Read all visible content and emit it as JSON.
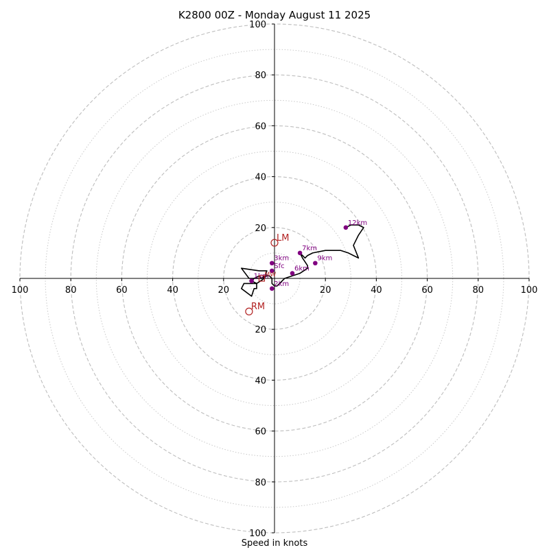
{
  "chart_data": {
    "type": "hodograph",
    "title": "K2800 00Z - Monday August 11 2025",
    "xlabel": "Speed in knots",
    "units": "knots",
    "range": [
      -100,
      100
    ],
    "rings_major": [
      20,
      40,
      60,
      80,
      100
    ],
    "rings_minor": [
      10,
      30,
      50,
      70,
      90
    ],
    "tick_labels": {
      "top": [
        "100",
        "80",
        "60",
        "40",
        "20"
      ],
      "bottom": [
        "20",
        "40",
        "60",
        "80",
        "100"
      ],
      "left": [
        "100",
        "80",
        "60",
        "40",
        "20"
      ],
      "right": [
        "20",
        "40",
        "60",
        "80",
        "100"
      ]
    },
    "grid": true,
    "trace": [
      [
        -3,
        1
      ],
      [
        -5,
        0
      ],
      [
        -10,
        0
      ],
      [
        -13,
        4
      ],
      [
        -6,
        3
      ],
      [
        -3,
        3
      ],
      [
        -4,
        0
      ],
      [
        -7,
        -2
      ],
      [
        -12,
        -2
      ],
      [
        -13,
        -4
      ],
      [
        -9,
        -7
      ],
      [
        -8,
        -4
      ],
      [
        -7,
        -4
      ],
      [
        -7,
        -2
      ],
      [
        -9,
        -1
      ],
      [
        -8,
        0
      ],
      [
        -6,
        1
      ],
      [
        -5,
        0
      ],
      [
        -4,
        1
      ],
      [
        -2,
        1
      ],
      [
        -1,
        0
      ],
      [
        -1,
        -2
      ],
      [
        0,
        -3
      ],
      [
        1,
        -3
      ],
      [
        2,
        -2
      ],
      [
        3,
        -1
      ],
      [
        4,
        0
      ],
      [
        7,
        1
      ],
      [
        10,
        2
      ],
      [
        13,
        4
      ],
      [
        13,
        5
      ],
      [
        11,
        8
      ],
      [
        10,
        10
      ],
      [
        11,
        9
      ],
      [
        12,
        8
      ],
      [
        13,
        9
      ],
      [
        15,
        10
      ],
      [
        20,
        11
      ],
      [
        24,
        11
      ],
      [
        26,
        11
      ],
      [
        29,
        10
      ],
      [
        31,
        9
      ],
      [
        33,
        8
      ],
      [
        31,
        13
      ],
      [
        33,
        17
      ],
      [
        35,
        20
      ],
      [
        33,
        21
      ],
      [
        30,
        21
      ],
      [
        28,
        20
      ]
    ],
    "height_markers": [
      {
        "label": "Sfc",
        "u": -1,
        "v": 3
      },
      {
        "label": "1km",
        "u": -9,
        "v": -1
      },
      {
        "label": "2km",
        "u": -1,
        "v": -4
      },
      {
        "label": "3km",
        "u": -1,
        "v": 6
      },
      {
        "label": "6km",
        "u": 7,
        "v": 2
      },
      {
        "label": "7km",
        "u": 10,
        "v": 10
      },
      {
        "label": "9km",
        "u": 16,
        "v": 6
      },
      {
        "label": "12km",
        "u": 28,
        "v": 20
      }
    ],
    "storm_motion": [
      {
        "label": "LM",
        "u": 0,
        "v": 14
      },
      {
        "label": "RM",
        "u": -10,
        "v": -13
      }
    ],
    "mean_wind_label": "MW"
  }
}
